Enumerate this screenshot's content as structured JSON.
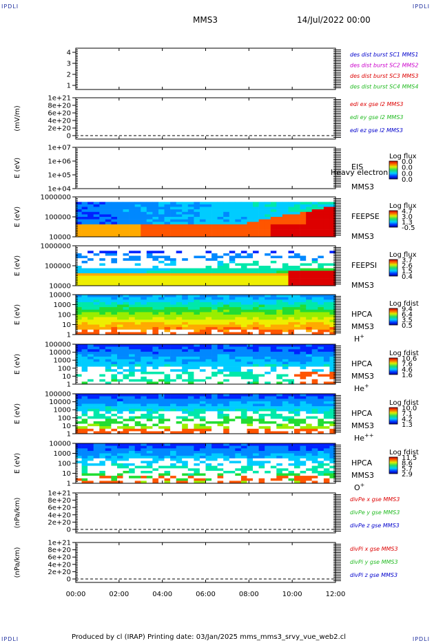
{
  "corners": {
    "tl": "IPDLI",
    "tr": "IPDLI",
    "bl": "IPDLI",
    "br": "IPDLI"
  },
  "header": {
    "mission": "MMS3",
    "date": "14/Jul/2022 00:00"
  },
  "footer": {
    "text": "Produced by cl (IRAP)   Printing date: 03/Jan/2025   mms_mms3_srvy_vue_web2.cl"
  },
  "colors": {
    "blue": "#0000cc",
    "magenta": "#cc00cc",
    "red": "#dd0000",
    "green": "#22bb22"
  },
  "chart_data": {
    "type": "heatmap",
    "x_ticks": [
      "00:00",
      "02:00",
      "04:00",
      "06:00",
      "08:00",
      "10:00",
      "12:00"
    ],
    "panels": [
      {
        "id": "burst",
        "kind": "labels",
        "ylabel": "",
        "yticks": [
          "4",
          "3",
          "2",
          "1"
        ],
        "labels": [
          {
            "text": "des dist burst SC1 MMS1",
            "color": "#0000cc"
          },
          {
            "text": "des dist burst SC2 MMS2",
            "color": "#cc00cc"
          },
          {
            "text": "des dist burst SC3 MMS3",
            "color": "#dd0000"
          },
          {
            "text": "des dist burst SC4 MMS4",
            "color": "#22bb22"
          }
        ]
      },
      {
        "id": "edi",
        "kind": "labels",
        "ylabel": "(mV/m)",
        "yticks": [
          "1e+21",
          "8e+20",
          "6e+20",
          "4e+20",
          "2e+20",
          "0"
        ],
        "labels": [
          {
            "text": "edi ex gse l2 MMS3",
            "color": "#dd0000"
          },
          {
            "text": "edi ey gse l2 MMS3",
            "color": "#22bb22"
          },
          {
            "text": "edi ez gse l2 MMS3",
            "color": "#0000cc"
          }
        ]
      },
      {
        "id": "eis",
        "kind": "empty-spec",
        "ylabel": "E (eV)",
        "yticks": [
          "1e+07",
          "1e+06",
          "1e+05",
          "1e+04"
        ],
        "name": "EIS",
        "sc": "MMS3",
        "overlay": "Heavy electron to",
        "cbar_title": "Log flux",
        "cbar_ticks": [
          "0.0",
          "0.0",
          "0.0",
          "0.0"
        ]
      },
      {
        "id": "feepse",
        "kind": "spec",
        "ylabel": "E (eV)",
        "yticks": [
          "1000000",
          "100000",
          "10000"
        ],
        "name": "FEEPSE",
        "sc": "MMS3",
        "cbar_title": "Log flux",
        "cbar_ticks": [
          "4.7",
          "3.0",
          "1.3",
          "-0.5"
        ]
      },
      {
        "id": "feepsi",
        "kind": "spec",
        "ylabel": "E (eV)",
        "yticks": [
          "1000000",
          "100000",
          "10000"
        ],
        "name": "FEEPSI",
        "sc": "MMS3",
        "cbar_title": "Log flux",
        "cbar_ticks": [
          "3.7",
          "2.6",
          "1.5",
          "0.4"
        ]
      },
      {
        "id": "hpca_h",
        "kind": "spec",
        "ylabel": "E (eV)",
        "yticks": [
          "10000",
          "1000",
          "100",
          "10",
          "1"
        ],
        "name": "HPCA",
        "sc": "MMS3",
        "species": "H",
        "charge": "+",
        "cbar_title": "Log fdist",
        "cbar_ticks": [
          "9.4",
          "6.4",
          "3.5",
          "0.5"
        ]
      },
      {
        "id": "hpca_he",
        "kind": "spec",
        "ylabel": "E (eV)",
        "yticks": [
          "100000",
          "10000",
          "1000",
          "100",
          "10",
          "1"
        ],
        "name": "HPCA",
        "sc": "MMS3",
        "species": "He",
        "charge": "+",
        "cbar_title": "Log fdist",
        "cbar_ticks": [
          "10.6",
          "7.6",
          "4.6",
          "1.6"
        ]
      },
      {
        "id": "hpca_he2",
        "kind": "spec",
        "ylabel": "E (eV)",
        "yticks": [
          "100000",
          "10000",
          "1000",
          "100",
          "10",
          "1"
        ],
        "name": "HPCA",
        "sc": "MMS3",
        "species": "He",
        "charge": "++",
        "cbar_title": "Log fdist",
        "cbar_ticks": [
          "10.0",
          "7.1",
          "4.2",
          "1.3"
        ]
      },
      {
        "id": "hpca_o",
        "kind": "spec",
        "ylabel": "E (eV)",
        "yticks": [
          "10000",
          "1000",
          "100",
          "10",
          "1"
        ],
        "name": "HPCA",
        "sc": "MMS3",
        "species": "O",
        "charge": "+",
        "cbar_title": "Log fdist",
        "cbar_ticks": [
          "11.5",
          "8.6",
          "5.7",
          "2.9"
        ]
      },
      {
        "id": "divpe",
        "kind": "labels",
        "ylabel": "(nPa/km)",
        "yticks": [
          "1e+21",
          "8e+20",
          "6e+20",
          "4e+20",
          "2e+20",
          "0"
        ],
        "labels": [
          {
            "text": "divPe x gse MMS3",
            "color": "#dd0000"
          },
          {
            "text": "divPe y gse MMS3",
            "color": "#22bb22"
          },
          {
            "text": "divPe z gse MMS3",
            "color": "#0000cc"
          }
        ]
      },
      {
        "id": "divpi",
        "kind": "labels",
        "ylabel": "(nPa/km)",
        "yticks": [
          "1e+21",
          "8e+20",
          "6e+20",
          "4e+20",
          "2e+20",
          "0"
        ],
        "labels": [
          {
            "text": "divPi x gse MMS3",
            "color": "#dd0000"
          },
          {
            "text": "divPi y gse MMS3",
            "color": "#22bb22"
          },
          {
            "text": "divPi z gse MMS3",
            "color": "#0000cc"
          }
        ]
      }
    ]
  }
}
